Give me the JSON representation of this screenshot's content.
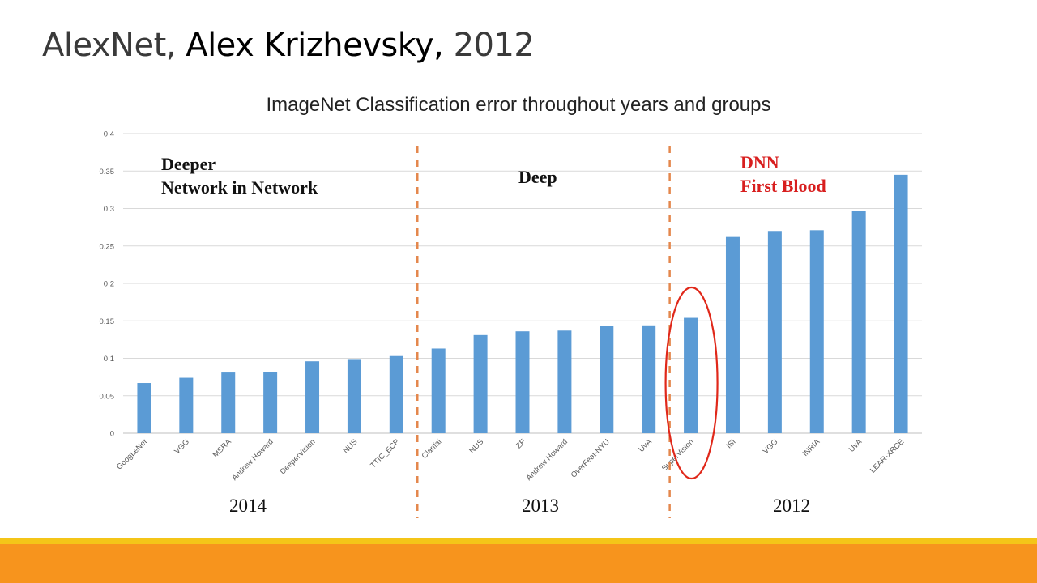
{
  "slide": {
    "title_prefix": "AlexNet,",
    "title_author": "Alex Krizhevsky,",
    "title_year": "2012"
  },
  "colors": {
    "bar": "#5b9bd5",
    "divider": "#e4874c",
    "highlight_circle": "#e0281a",
    "dnn_text": "#d81e1e",
    "footer_yellow": "#f4c518",
    "footer_orange": "#f7941d"
  },
  "chart_data": {
    "type": "bar",
    "title": "ImageNet Classification error throughout years and groups",
    "ylim": [
      0,
      0.4
    ],
    "yticks": [
      "0",
      "0.05",
      "0.1",
      "0.15",
      "0.2",
      "0.25",
      "0.3",
      "0.35",
      "0.4"
    ],
    "grid": true,
    "categories": [
      "GoogLeNet",
      "VGG",
      "MSRA",
      "Andrew Howard",
      "DeeperVision",
      "NUS",
      "TTIC_ECP",
      "Clarifai",
      "NUS",
      "ZF",
      "Andrew Howard",
      "OverFeat-NYU",
      "UvA",
      "SuperVision",
      "ISI",
      "VGG",
      "INRIA",
      "UvA",
      "LEAR-XRCE"
    ],
    "values": [
      0.067,
      0.074,
      0.081,
      0.082,
      0.096,
      0.099,
      0.103,
      0.113,
      0.131,
      0.136,
      0.137,
      0.143,
      0.144,
      0.154,
      0.262,
      0.27,
      0.271,
      0.297,
      0.345
    ],
    "highlighted": "SuperVision",
    "groups": [
      {
        "year": "2014",
        "annotation": [
          "Deeper",
          "Network in Network"
        ]
      },
      {
        "year": "2013",
        "annotation": [
          "Deep"
        ]
      },
      {
        "year": "2012",
        "annotation": [
          "DNN",
          "First Blood"
        ]
      }
    ]
  }
}
